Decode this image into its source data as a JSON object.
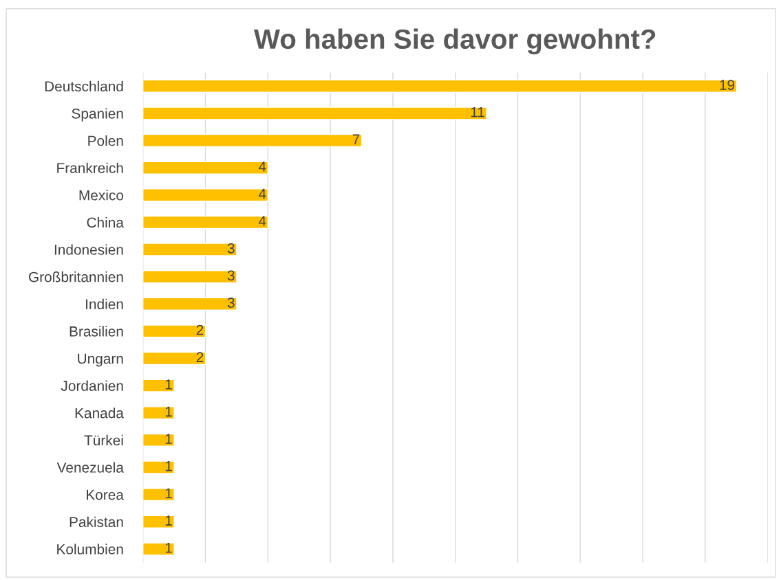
{
  "chart_data": {
    "type": "bar",
    "title": "Wo haben Sie davor gewohnt?",
    "orientation": "horizontal",
    "categories": [
      "Deutschland",
      "Spanien",
      "Polen",
      "Frankreich",
      "Mexico",
      "China",
      "Indonesien",
      "Großbritannien",
      "Indien",
      "Brasilien",
      "Ungarn",
      "Jordanien",
      "Kanada",
      "Türkei",
      "Venezuela",
      "Korea",
      "Pakistan",
      "Kolumbien"
    ],
    "values": [
      19,
      11,
      7,
      4,
      4,
      4,
      3,
      3,
      3,
      2,
      2,
      1,
      1,
      1,
      1,
      1,
      1,
      1
    ],
    "color": "#ffc000",
    "xlim": [
      0,
      20
    ],
    "xticks": [
      {
        "value": 0,
        "label": null
      },
      {
        "value": 2,
        "label": null
      },
      {
        "value": 4,
        "label": null
      },
      {
        "value": 6,
        "label": null
      },
      {
        "value": 8,
        "label": null
      },
      {
        "value": 10,
        "label": null
      },
      {
        "value": 12,
        "label": null
      },
      {
        "value": 14,
        "label": null
      },
      {
        "value": 16,
        "label": null
      },
      {
        "value": 18,
        "label": null
      },
      {
        "value": 20,
        "label": null
      }
    ],
    "grid": "x",
    "tick_labels": "y",
    "data_labels": true
  }
}
